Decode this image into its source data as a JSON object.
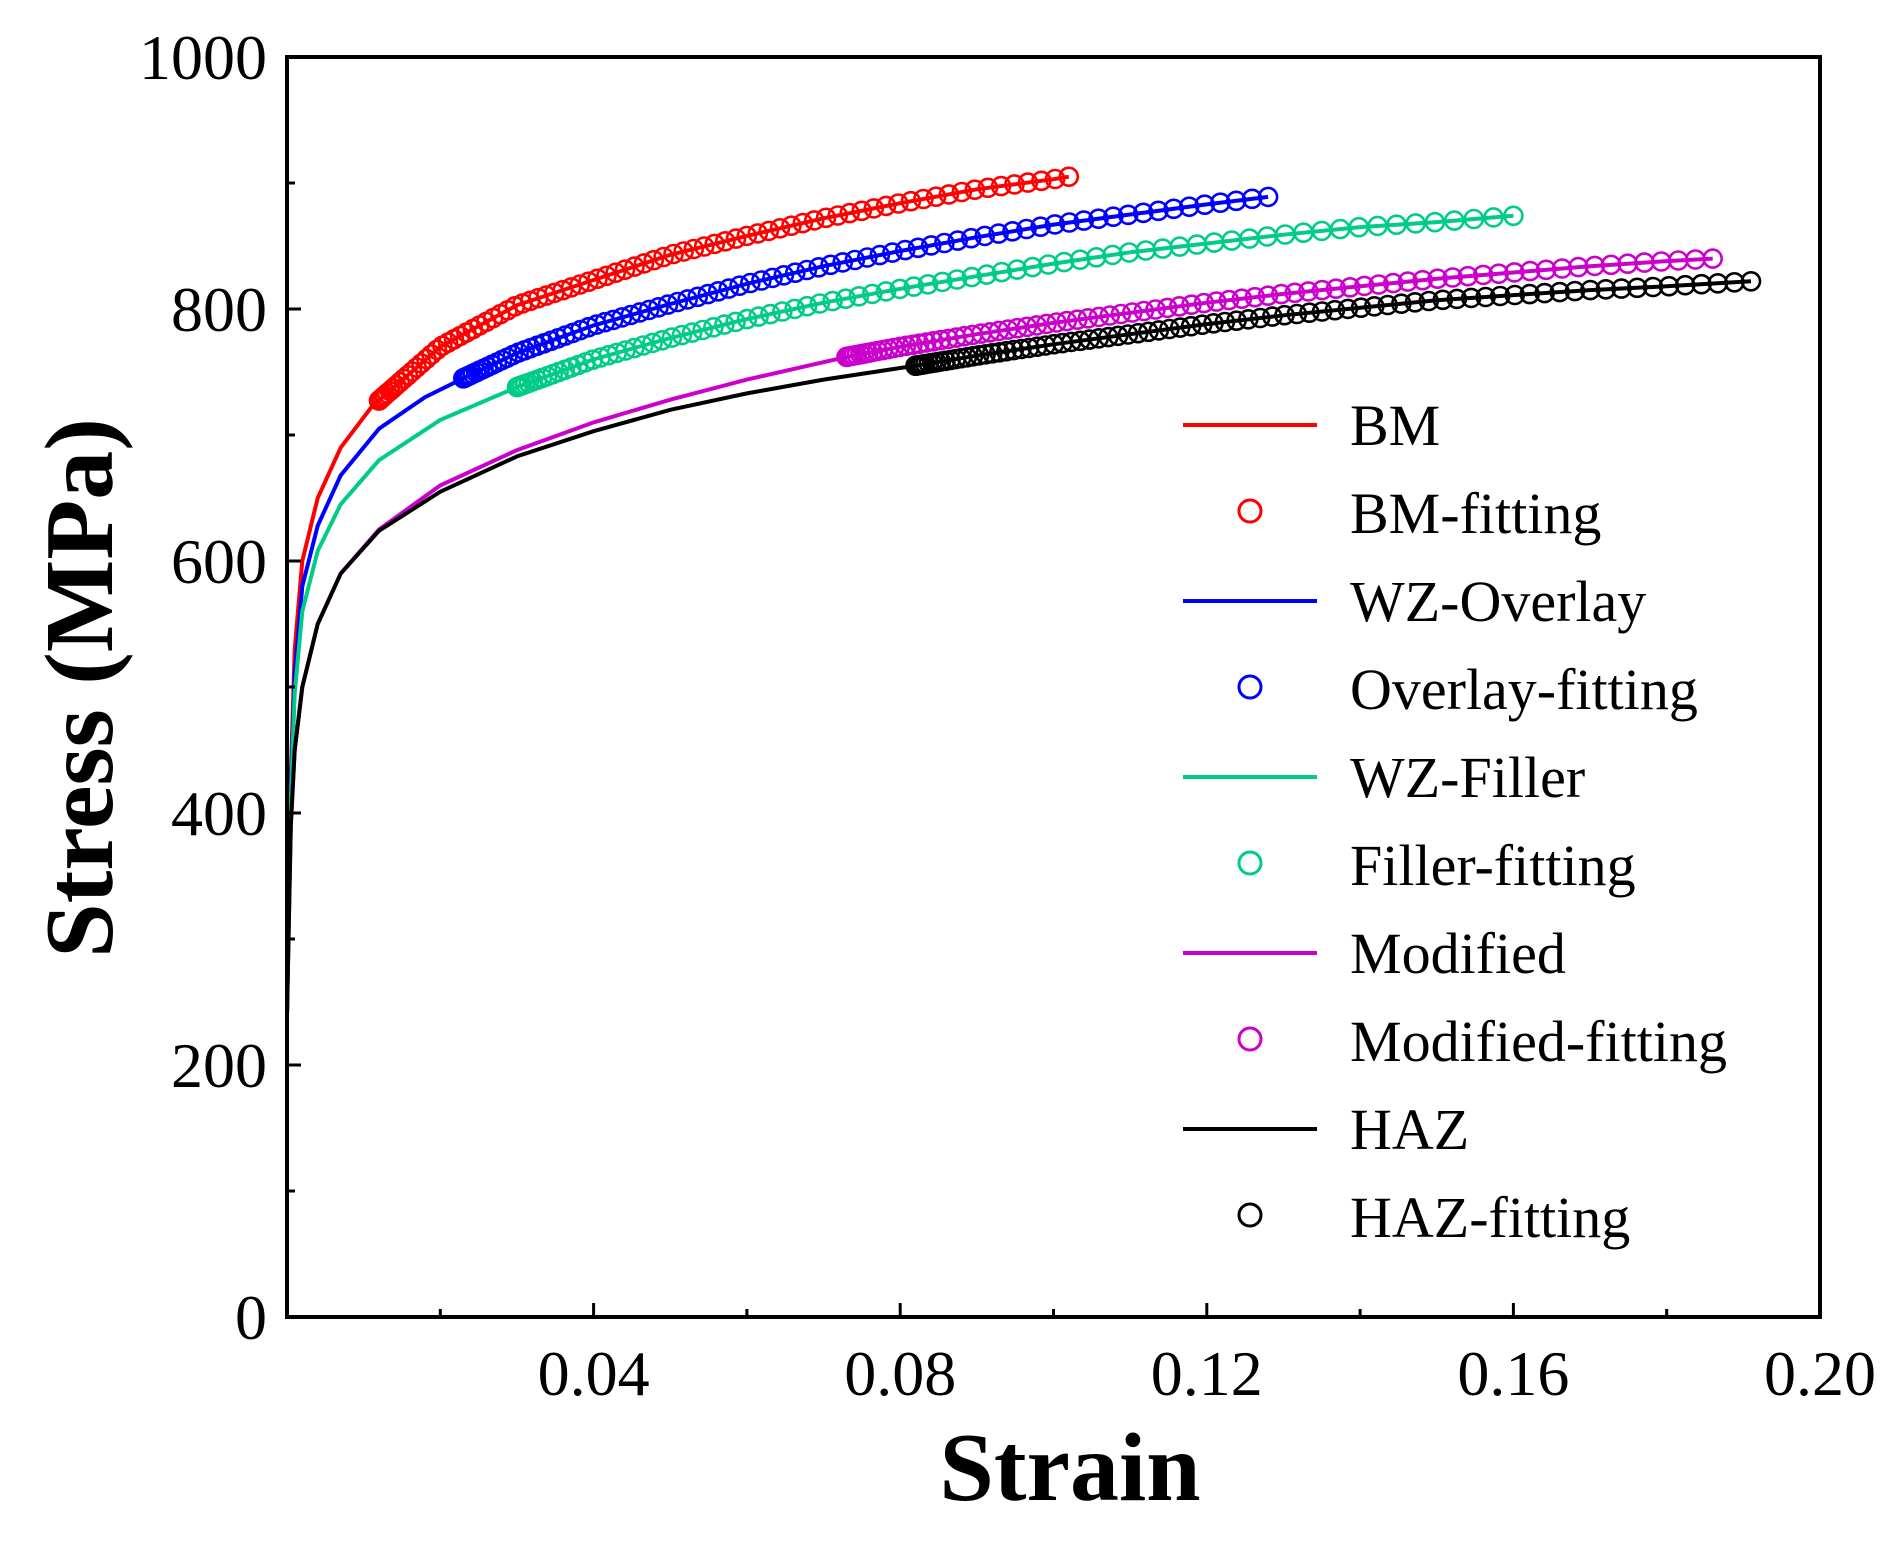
{
  "chart_data": {
    "type": "line",
    "xlabel": "Strain",
    "ylabel": "Stress (MPa)",
    "xlim": [
      0,
      0.2
    ],
    "ylim": [
      0,
      1000
    ],
    "x_ticks": [
      0.04,
      0.08,
      0.12,
      0.16,
      0.2
    ],
    "x_tick_labels": [
      "0.04",
      "0.08",
      "0.12",
      "0.16",
      "0.20"
    ],
    "y_ticks": [
      0,
      200,
      400,
      600,
      800,
      1000
    ],
    "y_tick_labels": [
      "0",
      "200",
      "400",
      "600",
      "800",
      "1000"
    ],
    "legend_position": "right",
    "series": [
      {
        "name": "BM",
        "fit_name": "BM-fitting",
        "color": "#ff0000",
        "line": [
          [
            0,
            240
          ],
          [
            0.0005,
            430
          ],
          [
            0.001,
            530
          ],
          [
            0.002,
            600
          ],
          [
            0.004,
            650
          ],
          [
            0.007,
            690
          ],
          [
            0.011,
            722
          ],
          [
            0.02,
            770
          ],
          [
            0.03,
            803
          ],
          [
            0.04,
            823
          ],
          [
            0.05,
            843
          ],
          [
            0.06,
            858
          ],
          [
            0.07,
            872
          ],
          [
            0.08,
            884
          ],
          [
            0.09,
            895
          ],
          [
            0.1,
            903
          ],
          [
            0.102,
            905
          ]
        ],
        "fit_range": [
          0.012,
          0.102
        ]
      },
      {
        "name": "WZ-Overlay",
        "fit_name": "Overlay-fitting",
        "color": "#0000ff",
        "line": [
          [
            0,
            240
          ],
          [
            0.0005,
            420
          ],
          [
            0.001,
            510
          ],
          [
            0.002,
            580
          ],
          [
            0.004,
            628
          ],
          [
            0.007,
            668
          ],
          [
            0.012,
            705
          ],
          [
            0.018,
            730
          ],
          [
            0.023,
            745
          ],
          [
            0.03,
            765
          ],
          [
            0.04,
            787
          ],
          [
            0.05,
            804
          ],
          [
            0.06,
            820
          ],
          [
            0.07,
            834
          ],
          [
            0.08,
            846
          ],
          [
            0.09,
            857
          ],
          [
            0.1,
            867
          ],
          [
            0.11,
            875
          ],
          [
            0.12,
            883
          ],
          [
            0.128,
            889
          ]
        ],
        "fit_range": [
          0.023,
          0.128
        ]
      },
      {
        "name": "WZ-Filler",
        "fit_name": "Filler-fitting",
        "color": "#00cc88",
        "line": [
          [
            0,
            240
          ],
          [
            0.0005,
            410
          ],
          [
            0.001,
            495
          ],
          [
            0.002,
            560
          ],
          [
            0.004,
            608
          ],
          [
            0.007,
            645
          ],
          [
            0.012,
            680
          ],
          [
            0.02,
            712
          ],
          [
            0.03,
            738
          ],
          [
            0.04,
            760
          ],
          [
            0.05,
            777
          ],
          [
            0.06,
            792
          ],
          [
            0.07,
            805
          ],
          [
            0.08,
            816
          ],
          [
            0.09,
            826
          ],
          [
            0.1,
            836
          ],
          [
            0.11,
            845
          ],
          [
            0.12,
            852
          ],
          [
            0.13,
            859
          ],
          [
            0.14,
            865
          ],
          [
            0.15,
            869
          ],
          [
            0.16,
            874
          ]
        ],
        "fit_range": [
          0.03,
          0.16
        ]
      },
      {
        "name": "Modified",
        "fit_name": "Modified-fitting",
        "color": "#cc00cc",
        "line": [
          [
            0,
            240
          ],
          [
            0.0005,
            390
          ],
          [
            0.001,
            450
          ],
          [
            0.002,
            500
          ],
          [
            0.004,
            550
          ],
          [
            0.007,
            590
          ],
          [
            0.012,
            625
          ],
          [
            0.02,
            660
          ],
          [
            0.03,
            688
          ],
          [
            0.04,
            710
          ],
          [
            0.05,
            728
          ],
          [
            0.06,
            744
          ],
          [
            0.073,
            762
          ],
          [
            0.08,
            770
          ],
          [
            0.09,
            780
          ],
          [
            0.1,
            789
          ],
          [
            0.11,
            797
          ],
          [
            0.12,
            805
          ],
          [
            0.13,
            812
          ],
          [
            0.14,
            818
          ],
          [
            0.15,
            824
          ],
          [
            0.16,
            829
          ],
          [
            0.17,
            834
          ],
          [
            0.18,
            838
          ],
          [
            0.186,
            840
          ]
        ],
        "fit_range": [
          0.073,
          0.186
        ]
      },
      {
        "name": "HAZ",
        "fit_name": "HAZ-fitting",
        "color": "#000000",
        "line": [
          [
            0,
            240
          ],
          [
            0.0005,
            390
          ],
          [
            0.001,
            450
          ],
          [
            0.002,
            500
          ],
          [
            0.004,
            550
          ],
          [
            0.007,
            590
          ],
          [
            0.012,
            624
          ],
          [
            0.02,
            655
          ],
          [
            0.03,
            683
          ],
          [
            0.04,
            703
          ],
          [
            0.05,
            720
          ],
          [
            0.06,
            733
          ],
          [
            0.07,
            744
          ],
          [
            0.082,
            755
          ],
          [
            0.09,
            763
          ],
          [
            0.1,
            772
          ],
          [
            0.11,
            780
          ],
          [
            0.12,
            788
          ],
          [
            0.13,
            795
          ],
          [
            0.14,
            801
          ],
          [
            0.15,
            807
          ],
          [
            0.16,
            811
          ],
          [
            0.17,
            815
          ],
          [
            0.18,
            818
          ],
          [
            0.191,
            822
          ]
        ],
        "fit_range": [
          0.082,
          0.191
        ]
      }
    ]
  }
}
